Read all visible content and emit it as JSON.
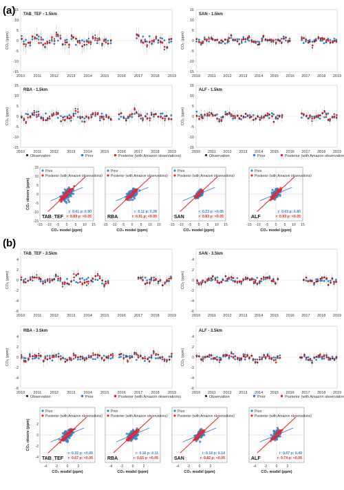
{
  "panel_a_label": "(a)",
  "panel_b_label": "(b)",
  "legend": {
    "observation": "Observation",
    "prior": "Prior",
    "posterior": "Posterior (with Amazon observations)"
  },
  "time_axis": {
    "ylabel": "CO₂ (ppm)",
    "years": [
      "2010",
      "2011",
      "2012",
      "2013",
      "2014",
      "2015",
      "2016",
      "2017",
      "2018",
      "2019"
    ]
  },
  "scatter_axis": {
    "xlabel": "CO₂ model (ppm)",
    "ylabel": "CO₂ observ (ppm)",
    "ticks_a": [
      "-15",
      "-10",
      "-5",
      "0",
      "5",
      "10",
      "15"
    ],
    "ticks_b": [
      "-4",
      "-2",
      "0",
      "2"
    ]
  },
  "colors": {
    "observation": "#3a3a3a",
    "prior": "#3d7fc6",
    "posterior": "#e8242c",
    "errorbar": "#b8b8b8"
  },
  "chart_data": [
    {
      "type": "scatter",
      "title": "TAB_TEF - 1.5km",
      "ylim": [
        -15,
        15
      ],
      "yticks": [
        "15",
        "10",
        "5",
        "0",
        "-5",
        "-10",
        "-15"
      ],
      "xlim": [
        2010,
        2019
      ],
      "gaps": [
        [
          2015.4,
          2016.9
        ]
      ],
      "amp": 3.2
    },
    {
      "type": "scatter",
      "title": "SAN - 1.5km",
      "ylim": [
        -15,
        15
      ],
      "yticks": [
        "15",
        "10",
        "5",
        "0",
        "-5",
        "-10",
        "-15"
      ],
      "xlim": [
        2010,
        2019
      ],
      "gaps": [
        [
          2016.0,
          2016.7
        ]
      ],
      "amp": 2.0
    },
    {
      "type": "scatter",
      "title": "RBA - 1.5km",
      "ylim": [
        -15,
        15
      ],
      "yticks": [
        "15",
        "10",
        "5",
        "0",
        "-5",
        "-10",
        "-15"
      ],
      "xlim": [
        2010,
        2019
      ],
      "gaps": [
        [
          2015.4,
          2015.8
        ]
      ],
      "amp": 2.6
    },
    {
      "type": "scatter",
      "title": "ALF - 1.5km",
      "ylim": [
        -15,
        15
      ],
      "yticks": [
        "15",
        "10",
        "5",
        "0",
        "-5",
        "-10",
        "-15"
      ],
      "xlim": [
        2010,
        2019
      ],
      "gaps": [
        [
          2015.5,
          2016.7
        ]
      ],
      "amp": 2.4
    },
    {
      "type": "scatter",
      "title": "TAB_TEF - 3.5km",
      "ylim": [
        -6,
        6
      ],
      "yticks": [
        "4",
        "2",
        "0",
        "-2",
        "-4",
        "-6"
      ],
      "xlim": [
        2010,
        2019
      ],
      "gaps": [
        [
          2015.3,
          2016.9
        ]
      ],
      "amp": 1.0
    },
    {
      "type": "scatter",
      "title": "SAN - 3.5km",
      "ylim": [
        -6,
        6
      ],
      "yticks": [
        "4",
        "2",
        "0",
        "-2",
        "-4",
        "-6"
      ],
      "xlim": [
        2010,
        2019
      ],
      "gaps": [
        [
          2015.3,
          2016.8
        ]
      ],
      "amp": 0.8
    },
    {
      "type": "scatter",
      "title": "RBA - 3.5km",
      "ylim": [
        -6,
        6
      ],
      "yticks": [
        "4",
        "2",
        "0",
        "-2",
        "-4",
        "-6"
      ],
      "xlim": [
        2010,
        2019
      ],
      "gaps": [
        [
          2015.5,
          2015.8
        ]
      ],
      "amp": 0.9
    },
    {
      "type": "scatter",
      "title": "ALF - 3.5km",
      "ylim": [
        -6,
        6
      ],
      "yticks": [
        "4",
        "2",
        "0",
        "-2",
        "-4",
        "-6"
      ],
      "xlim": [
        2010,
        2019
      ],
      "gaps": [
        [
          2015.4,
          2016.6
        ]
      ],
      "amp": 0.8
    }
  ],
  "scatter_panels": [
    {
      "site": "TAB_TEF",
      "r_prior": "r: 0.01  p: 0.90",
      "r_post": "r: 0.89  p: <0.05",
      "spread": 4.0
    },
    {
      "site": "RBA",
      "r_prior": "r: 0.11  p: 0.28",
      "r_post": "r: 0.91  p: <0.05",
      "spread": 3.5
    },
    {
      "site": "SAN",
      "r_prior": "r: 0.23  p: <0.05",
      "r_post": "r: 0.83  p: <0.05",
      "spread": 2.5
    },
    {
      "site": "ALF",
      "r_prior": "r: 0.03  p: 0.80",
      "r_post": "r: 0.93  p: <0.05",
      "spread": 3.0
    },
    {
      "site": "TAB_TEF",
      "r_prior": "r: 0.32  p: <0.05",
      "r_post": "r: 0.67  p: <0.05",
      "spread": 1.2
    },
    {
      "site": "RBA",
      "r_prior": "r: 0.16  p: 0.11",
      "r_post": "r: 0.65  p: <0.05",
      "spread": 1.1
    },
    {
      "site": "SAN",
      "r_prior": "r: 0.16  p: 0.14",
      "r_post": "r: 0.82  p: <0.05",
      "spread": 1.0
    },
    {
      "site": "ALF",
      "r_prior": "r: 0.07  p: 0.49",
      "r_post": "r: 0.74  p: <0.05",
      "spread": 1.0
    }
  ]
}
